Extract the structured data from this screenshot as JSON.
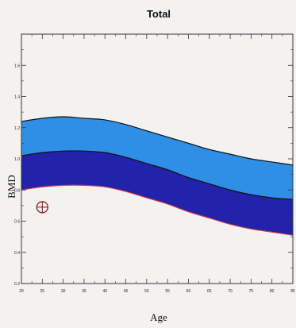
{
  "chart_data": {
    "type": "area",
    "title": "Total",
    "xlabel": "Age",
    "ylabel": "BMD",
    "xlim": [
      20,
      85
    ],
    "ylim": [
      0.2,
      1.8
    ],
    "x_ticks": [
      "20",
      "25",
      "30",
      "35",
      "40",
      "45",
      "50",
      "55",
      "60",
      "65",
      "70",
      "75",
      "80",
      "85"
    ],
    "y_ticks": [
      "0.2",
      "0.4",
      "0.6",
      "0.8",
      "1.0",
      "1.2",
      "1.4",
      "1.6"
    ],
    "x": [
      20,
      25,
      30,
      35,
      40,
      45,
      50,
      55,
      60,
      65,
      70,
      75,
      80,
      85
    ],
    "series": [
      {
        "values": [
          1.24,
          1.26,
          1.27,
          1.26,
          1.25,
          1.22,
          1.18,
          1.14,
          1.1,
          1.06,
          1.03,
          1.0,
          0.98,
          0.96
        ]
      },
      {
        "values": [
          1.02,
          1.04,
          1.05,
          1.05,
          1.04,
          1.01,
          0.97,
          0.93,
          0.88,
          0.84,
          0.8,
          0.77,
          0.75,
          0.74
        ]
      },
      {
        "values": [
          0.8,
          0.82,
          0.83,
          0.83,
          0.82,
          0.79,
          0.75,
          0.71,
          0.66,
          0.62,
          0.58,
          0.55,
          0.53,
          0.51
        ]
      }
    ],
    "band_colors": [
      "#2f8fe6",
      "#2222aa"
    ],
    "line_colors": [
      "#111111",
      "#111111",
      "#d23a4a"
    ],
    "marker": {
      "x": 25,
      "y": 0.69
    },
    "grid": false
  }
}
